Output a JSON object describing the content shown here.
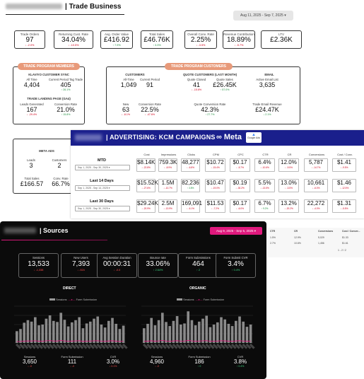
{
  "trade": {
    "title": "| Trade Business",
    "date_range": "Aug 11, 2025 - Sep 7, 2025",
    "kpis": [
      {
        "label": "Trade Orders",
        "value": "97",
        "delta": "↓ -2.0%",
        "dir": "down"
      },
      {
        "label": "Returning Cust. Rate",
        "value": "34.04%",
        "delta": "↓ -10.5%",
        "dir": "down"
      },
      {
        "label": "Avg. Order Value",
        "value": "£416.92",
        "delta": "↑ 7.9%",
        "dir": "up"
      },
      {
        "label": "Total Sales",
        "value": "£46.76K",
        "delta": "↑ 3.3%",
        "dir": "up"
      },
      {
        "label": "Overall Conv. Rate",
        "value": "2.25%",
        "delta": "↓ -3.5%",
        "dir": "down"
      },
      {
        "label": "Revenue Contribution",
        "value": "18.89%",
        "delta": "↓ -5.7%",
        "dir": "down"
      },
      {
        "label": "LTV",
        "value": "£2.36K",
        "delta": "",
        "dir": ""
      }
    ],
    "members": {
      "pill": "TRADE PROGRAM MEMBERS",
      "klaviyo_title": "KLAVIYO CUSTOMER SYNC",
      "all_time_label": "All Time",
      "all_time_value": "4,404",
      "current_tag_label": "Current Period Tag Trade",
      "current_tag_value": "405",
      "current_tag_delta": "↑ 26.1%",
      "landing_title": "TRADE LANDING PAGE (GA4)",
      "leads_label": "Leads Generated",
      "leads_value": "167",
      "leads_delta": "↓ -29.4%",
      "conv_label": "Conversion Rate",
      "conv_value": "21.0%",
      "conv_delta": "↑ 15.8%"
    },
    "customers": {
      "pill": "TRADE PROGRAM CUSTOMERS",
      "customers_title": "CUSTOMERS",
      "quote_title": "QUOTE CUSTOMERS (LAST MONTH)",
      "email_title": "EMAIL",
      "all_time_label": "All-Time",
      "all_time_value": "1,049",
      "current_label": "Current Period",
      "current_value": "91",
      "quote_closed_label": "Quote Closed",
      "quote_closed_value": "41",
      "quote_closed_delta": "↓ -15.6%",
      "quote_sales_label": "Quote Sales",
      "quote_sales_value": "£26.45K",
      "quote_sales_delta": "↑ 57.0%",
      "active_email_label": "Active Email List",
      "active_email_value": "3,635",
      "new_label": "New",
      "new_value": "63",
      "new_delta": "↓ -8.1%",
      "conv_label": "Conversion Rate",
      "conv_value": "22.5%",
      "conv_delta": "↓ -47.6%",
      "quote_conv_label": "Quote Conversion Rate",
      "quote_conv_value": "42.3%",
      "quote_conv_delta": "↑ 27.7%",
      "email_rev_label": "Trade Email Revenue",
      "email_rev_value": "£24.47K",
      "email_rev_delta": "↓ 2.1%"
    },
    "meta_ads": {
      "title": "META ADS",
      "leads_label": "Leads",
      "leads_value": "3",
      "customers_label": "Customers",
      "customers_value": "2",
      "total_sales_label": "Total Sales",
      "total_sales_value": "£166.57",
      "conv_label": "Conv. Rate",
      "conv_value": "66.7%"
    }
  },
  "advertising": {
    "title": "| ADVERTISING: KCM CAMPAIGNS",
    "meta_label": "∞ Meta",
    "google_label": "Google Ads",
    "columns": [
      "Cost",
      "Impressions",
      "Clicks",
      "CPM",
      "CPC",
      "CTR",
      "CR",
      "Conversions",
      "Cost / Conv."
    ],
    "rows": [
      {
        "label": "MTD",
        "date": "Sep 1, 2025 - Sep 30, 2025 ▾",
        "cells": [
          [
            "$8.14K",
            "↓ -22.8%",
            "down"
          ],
          [
            "759.3K",
            "↓ -8.9%",
            "down"
          ],
          [
            "48,277",
            "↓ -6.8%",
            "down"
          ],
          [
            "$10.72",
            "↓ -15.4%",
            "down"
          ],
          [
            "$0.17",
            "↓ -5.7%",
            "down"
          ],
          [
            "6.4%",
            "↓ -10.6%",
            "down"
          ],
          [
            "12.0%",
            "↓ -9.5%",
            "down"
          ],
          [
            "5,787",
            "↓ -14.7%",
            "down"
          ],
          [
            "$1.41",
            "↓ -9.5%",
            "down"
          ]
        ]
      },
      {
        "label": "Last 14 Days",
        "date": "Sep 1, 2025 - Sep 14, 2025 ▾",
        "cells": [
          [
            "$15.52K",
            "↓ -27.6%",
            "down"
          ],
          [
            "1.5M",
            "↓ -10.7%",
            "down"
          ],
          [
            "82,236",
            "↑ 3.8%",
            "up"
          ],
          [
            "$10.47",
            "↓ -19.0%",
            "down"
          ],
          [
            "$0.19",
            "↓ -30.2%",
            "down"
          ],
          [
            "5.5%",
            "↓ -13.5%",
            "down"
          ],
          [
            "13.0%",
            "↓ -3.5%",
            "down"
          ],
          [
            "10,661",
            "↓ -6.0%",
            "down"
          ],
          [
            "$1.46",
            "↓ -12.5%",
            "down"
          ]
        ]
      },
      {
        "label": "Last 30 Days",
        "date": "Sep 1, 2025 - Sep 30, 2025 ▾",
        "cells": [
          [
            "$29.24K",
            "↓ -20.9%",
            "down"
          ],
          [
            "2.5M",
            "↓ -13.9%",
            "down"
          ],
          [
            "169,091",
            "↓ -6.1%",
            "down"
          ],
          [
            "$11.53",
            "↓ -7.2%",
            "down"
          ],
          [
            "$0.17",
            "↓ -6.0%",
            "down"
          ],
          [
            "6.7%",
            "↑ 9.2%",
            "up"
          ],
          [
            "13.2%",
            "↓ -20.2%",
            "down"
          ],
          [
            "22,272",
            "↓ -4.0%",
            "down"
          ],
          [
            "$1.31",
            "↓ -5.5%",
            "down"
          ]
        ]
      }
    ]
  },
  "mini_table": {
    "headers": [
      "CTR",
      "CR",
      "Conversions",
      "Cost / Conver..."
    ],
    "rows": [
      [
        "1.5%",
        "12.9%",
        "5,029",
        "$1.33"
      ],
      [
        "2.7%",
        "10.6%",
        "1,456",
        "$1.61"
      ]
    ],
    "pager": "1 - 2 / 2"
  },
  "sources": {
    "title": "| Sources",
    "date_range": "Aug 9, 2025 - Sep 5, 2025 ▾",
    "kpis": [
      {
        "label": "Sessions",
        "value": "13,533",
        "delta": "↓ -1,338",
        "dir": "down"
      },
      {
        "label": "New Users",
        "value": "7,393",
        "delta": "↓ -924",
        "dir": "down"
      },
      {
        "label": "Avg Session Duration",
        "value": "00:00:31",
        "delta": "↓ -0.0",
        "dir": "down"
      },
      {
        "label": "Bounce rate",
        "value": "33.06%",
        "delta": "↑ 2.64%",
        "dir": "up"
      },
      {
        "label": "Form Submissions",
        "value": "464",
        "delta": "↑ 2",
        "dir": "up"
      },
      {
        "label": "Form Submit CVR",
        "value": "3.4%",
        "delta": "↑ 0.4%",
        "dir": "up"
      }
    ],
    "direct": {
      "title": "DIRECT",
      "legend_a": "Sessions",
      "legend_b": "Form Submission",
      "sessions_label": "Sessions",
      "sessions_value": "3,650",
      "sessions_delta": "↓ -0",
      "forms_label": "Form Submission",
      "forms_value": "111",
      "forms_delta": "↓ -0",
      "cvr_label": "CVR",
      "cvr_value": "3.0%",
      "cvr_delta": "↓ 0.1%"
    },
    "organic": {
      "title": "ORGANIC",
      "legend_a": "Sessions",
      "legend_b": "Form Submission",
      "sessions_label": "Sessions",
      "sessions_value": "4,960",
      "sessions_delta": "↓ -0",
      "forms_label": "Form Submission",
      "forms_value": "186",
      "forms_delta": "↑ 0",
      "cvr_label": "CVR",
      "cvr_value": "3.8%",
      "cvr_delta": "↑ 0.4%"
    },
    "direct_bars": [
      0.32,
      0.38,
      0.55,
      0.62,
      0.58,
      0.7,
      0.48,
      0.5,
      0.66,
      0.75,
      0.6,
      0.57,
      0.82,
      0.63,
      0.45,
      0.56,
      0.62,
      0.7,
      0.4,
      0.53,
      0.58,
      0.66,
      0.72,
      0.5,
      0.42,
      0.6,
      0.68,
      0.52,
      0.38,
      0.47
    ],
    "organic_bars": [
      0.4,
      0.52,
      0.68,
      0.48,
      0.62,
      0.82,
      0.57,
      0.46,
      0.6,
      0.73,
      0.5,
      0.53,
      0.86,
      0.62,
      0.48,
      0.58,
      0.66,
      0.74,
      0.43,
      0.5,
      0.56,
      0.7,
      0.64,
      0.52,
      0.46,
      0.6,
      0.72,
      0.58,
      0.44,
      0.5
    ]
  },
  "colors": {
    "accent": "#e0197d",
    "adv_header": "#1a1f8c",
    "pill": "#e89a7a"
  }
}
